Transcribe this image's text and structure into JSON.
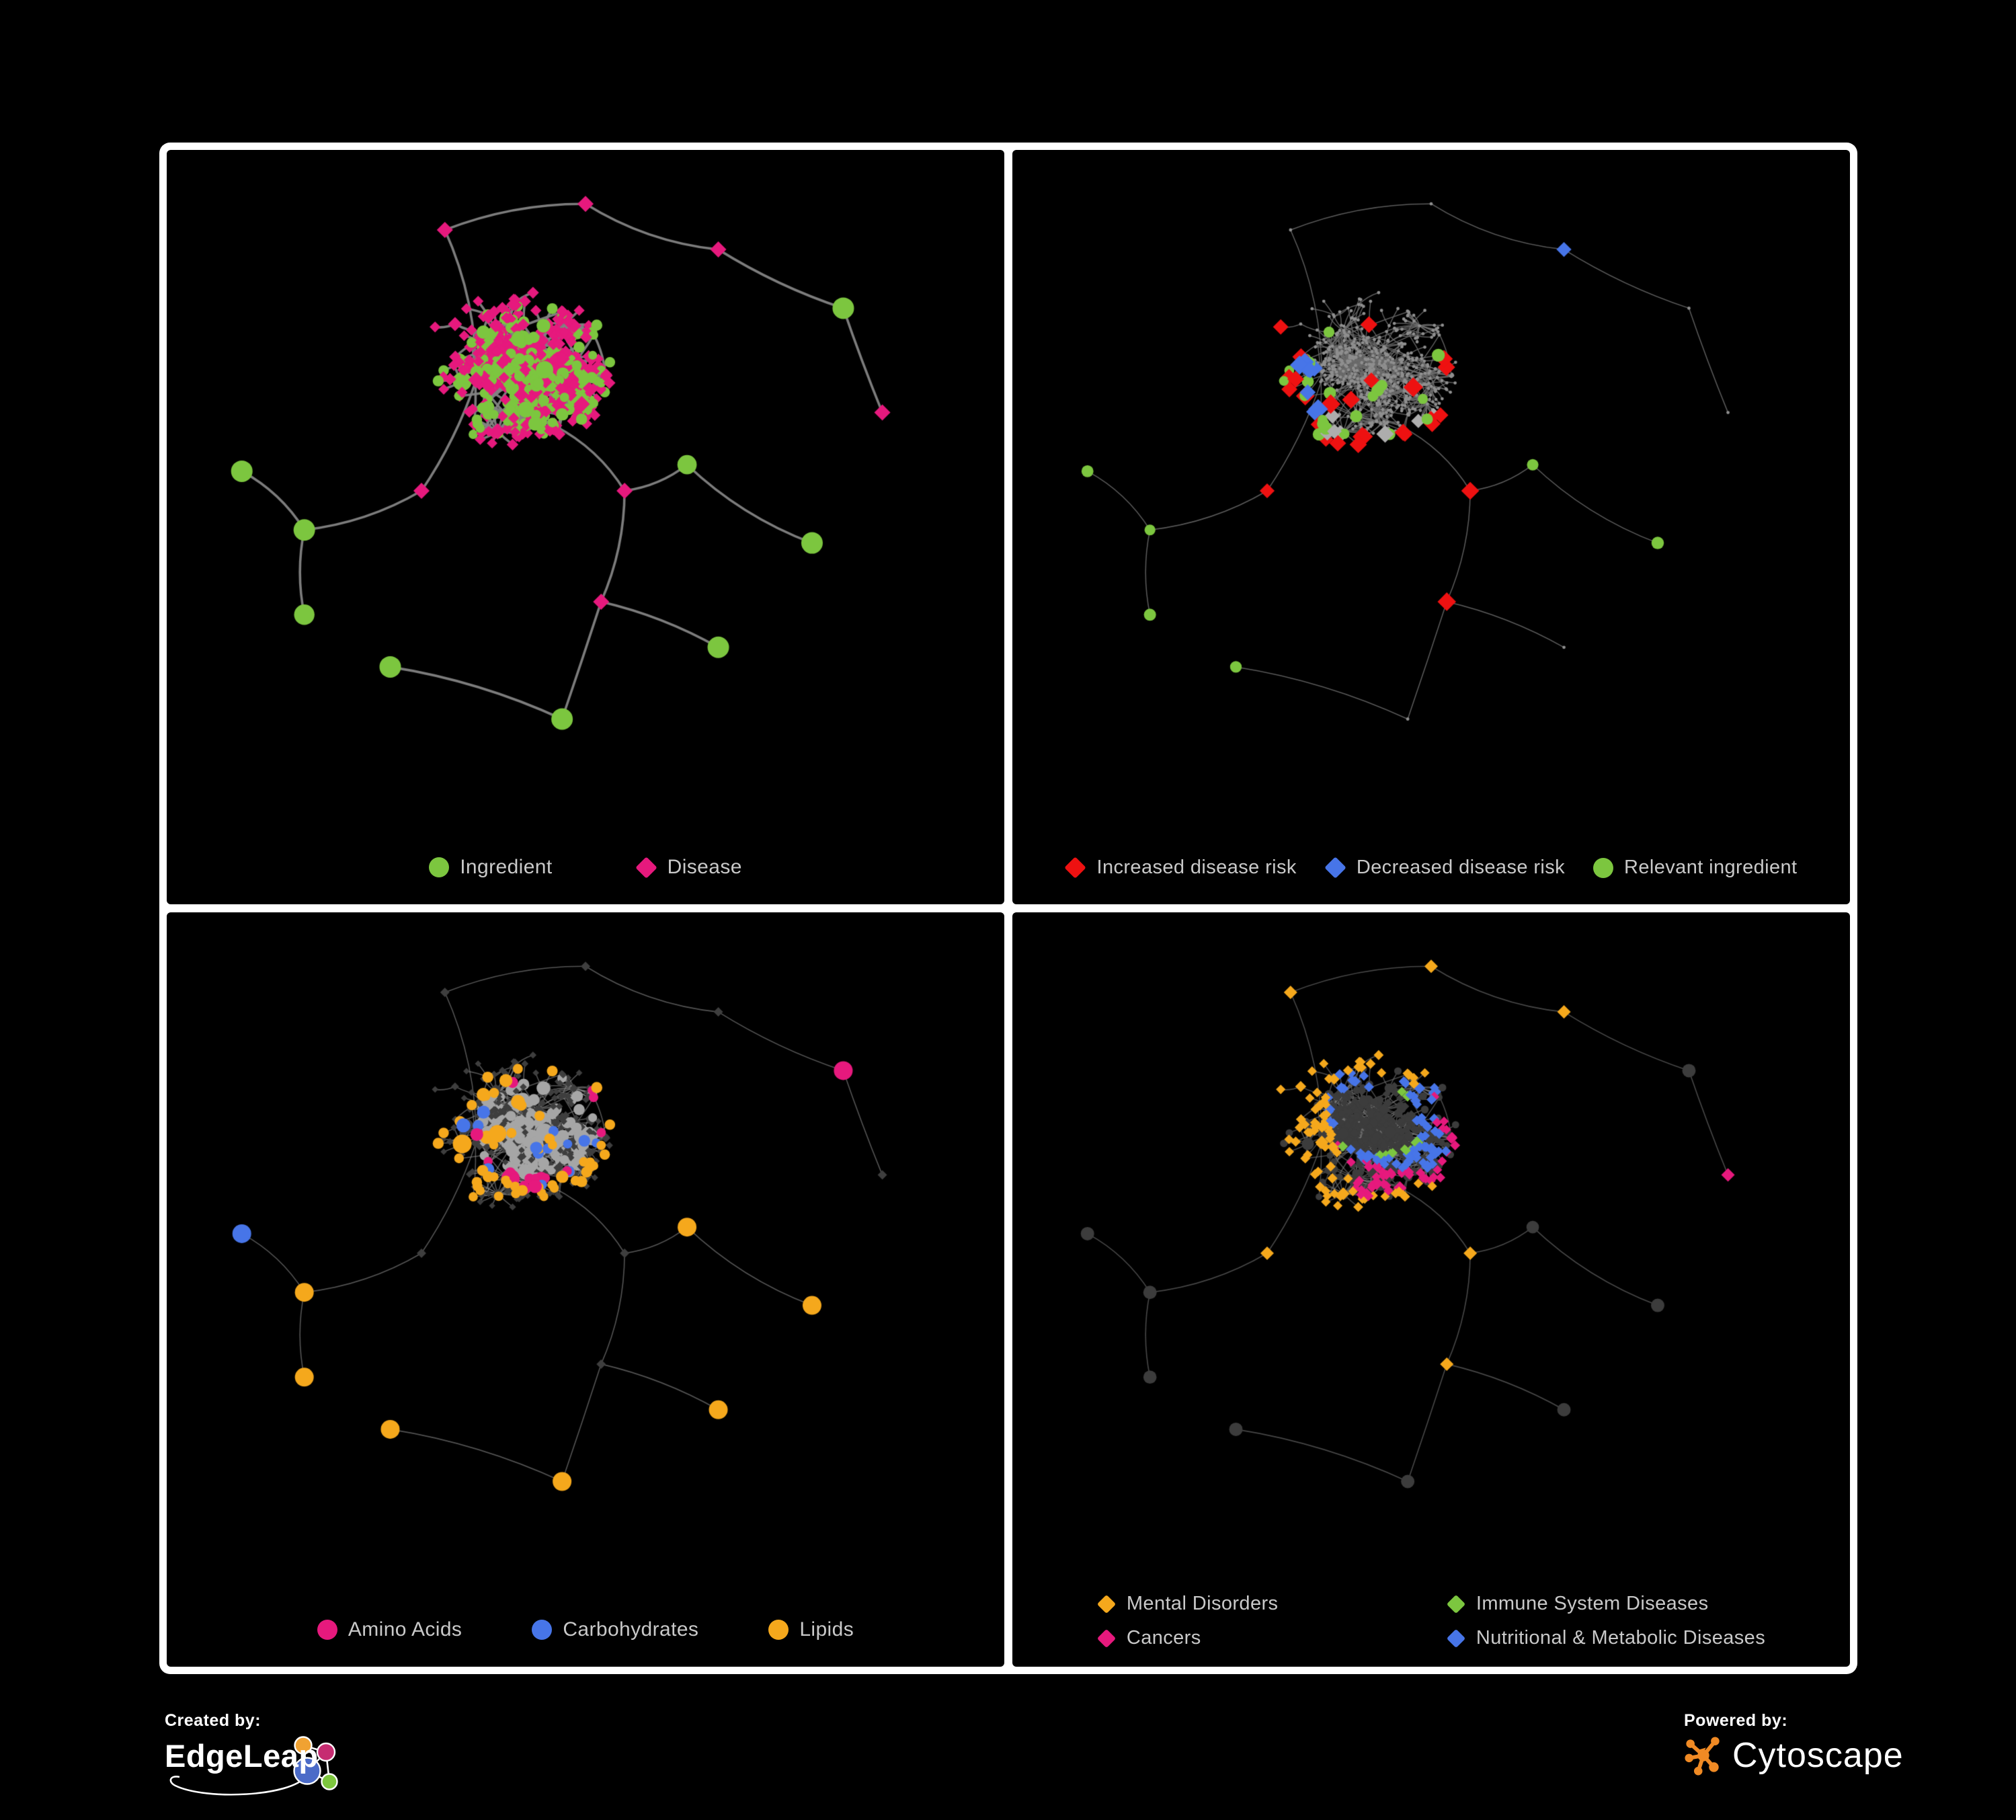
{
  "figure": {
    "background": "#000000",
    "frame_color": "#ffffff"
  },
  "panels": [
    {
      "name": "ingredient-disease-network",
      "legend": [
        {
          "shape": "circle",
          "color": "#7CC63F",
          "label": "Ingredient"
        },
        {
          "shape": "diamond",
          "color": "#E6197D",
          "label": "Disease"
        }
      ],
      "style": {
        "mode": "full",
        "edge": "#838383",
        "edgeWidth": 3.6,
        "edgeAlpha": 0.95,
        "ingredient": "#7CC63F",
        "disease": "#E6197D"
      }
    },
    {
      "name": "disease-risk-network",
      "legend": [
        {
          "shape": "diamond",
          "color": "#EE1111",
          "label": "Increased disease risk"
        },
        {
          "shape": "diamond",
          "color": "#4775E8",
          "label": "Decreased disease risk"
        },
        {
          "shape": "circle",
          "color": "#7CC63F",
          "label": "Relevant ingredient"
        }
      ],
      "style": {
        "mode": "tiny",
        "edge": "#6C6C6C",
        "edgeWidth": 1.5,
        "edgeAlpha": 0.85,
        "base": "#8F8F8F",
        "baseRadius": 2.4
      },
      "highlights": [
        {
          "on": "d",
          "shape": "diamond",
          "color": "#EE1111",
          "size": 13,
          "count": 27,
          "spread": 0.05,
          "foci": [
            [
              0.36,
              0.3
            ],
            [
              0.45,
              0.4
            ],
            [
              0.52,
              0.34
            ],
            [
              0.4,
              0.52
            ],
            [
              0.56,
              0.55
            ],
            [
              0.3,
              0.36
            ],
            [
              0.36,
              0.67
            ],
            [
              0.4,
              0.76
            ]
          ]
        },
        {
          "on": "d",
          "shape": "diamond",
          "color": "#4775E8",
          "size": 13,
          "count": 9,
          "spread": 0.03,
          "foci": [
            [
              0.205,
              0.34
            ],
            [
              0.225,
              0.4
            ],
            [
              0.21,
              0.37
            ],
            [
              0.87,
              0.165
            ]
          ]
        },
        {
          "on": "d",
          "shape": "diamond",
          "color": "#ADADAD",
          "size": 12,
          "count": 8,
          "spread": 0.04,
          "foci": [
            [
              0.24,
              0.33
            ],
            [
              0.33,
              0.42
            ],
            [
              0.44,
              0.47
            ],
            [
              0.47,
              0.56
            ],
            [
              0.6,
              0.6
            ],
            [
              0.16,
              0.52
            ]
          ]
        },
        {
          "on": "i",
          "shape": "circle",
          "color": "#7CC63F",
          "size": 8.5,
          "count": 27,
          "spread": 0.06,
          "foci": [
            [
              0.3,
              0.28
            ],
            [
              0.42,
              0.38
            ],
            [
              0.5,
              0.3
            ],
            [
              0.36,
              0.48
            ],
            [
              0.6,
              0.52
            ],
            [
              0.13,
              0.3
            ],
            [
              0.25,
              0.6
            ],
            [
              0.57,
              0.37
            ]
          ]
        }
      ]
    },
    {
      "name": "compound-class-network",
      "legend": [
        {
          "shape": "circle",
          "color": "#E6197D",
          "label": "Amino Acids"
        },
        {
          "shape": "circle",
          "color": "#4775E8",
          "label": "Carbohydrates"
        },
        {
          "shape": "circle",
          "color": "#F5A81C",
          "label": "Lipids"
        }
      ],
      "style": {
        "mode": "dim",
        "edge": "#8C8C8C",
        "edgeWidth": 1.6,
        "edgeAlpha": 0.6,
        "ingredient": "#A6A6A6",
        "disease": "#3E3E3E"
      },
      "highlights": [
        {
          "on": "i",
          "shape": "circle",
          "color": "#F5A81C",
          "size": 0,
          "count": 62,
          "spread": 0.045,
          "foci": [
            [
              0.4,
              0.3
            ],
            [
              0.45,
              0.27
            ],
            [
              0.35,
              0.4
            ],
            [
              0.3,
              0.45
            ],
            [
              0.52,
              0.45
            ],
            [
              0.42,
              0.55
            ],
            [
              0.25,
              0.35
            ],
            [
              0.55,
              0.3
            ],
            [
              0.45,
              0.7
            ],
            [
              0.6,
              0.63
            ],
            [
              0.2,
              0.6
            ],
            [
              0.35,
              0.18
            ]
          ]
        },
        {
          "on": "i",
          "shape": "circle",
          "color": "#4775E8",
          "size": 0,
          "count": 17,
          "spread": 0.03,
          "foci": [
            [
              0.42,
              0.28
            ],
            [
              0.38,
              0.33
            ],
            [
              0.48,
              0.32
            ],
            [
              0.68,
              0.63
            ],
            [
              0.12,
              0.22
            ],
            [
              0.44,
              0.4
            ]
          ]
        },
        {
          "on": "i",
          "shape": "circle",
          "color": "#E6197D",
          "size": 0,
          "count": 20,
          "spread": 0.04,
          "foci": [
            [
              0.08,
              0.35
            ],
            [
              0.17,
              0.52
            ],
            [
              0.45,
              0.06
            ],
            [
              0.75,
              0.25
            ],
            [
              0.95,
              0.22
            ],
            [
              0.5,
              0.62
            ],
            [
              0.55,
              0.72
            ],
            [
              0.28,
              0.8
            ],
            [
              0.12,
              0.75
            ],
            [
              0.85,
              0.45
            ]
          ]
        }
      ]
    },
    {
      "name": "disease-class-network",
      "legend": [
        {
          "shape": "diamond",
          "color": "#F5A81C",
          "label": "Mental Disorders"
        },
        {
          "shape": "diamond",
          "color": "#7CC63F",
          "label": "Immune System Diseases"
        },
        {
          "shape": "diamond",
          "color": "#E6197D",
          "label": "Cancers"
        },
        {
          "shape": "diamond",
          "color": "#4775E8",
          "label": "Nutritional & Metabolic Diseases"
        }
      ],
      "style": {
        "mode": "dim2",
        "edge": "#787878",
        "edgeWidth": 1.6,
        "edgeAlpha": 0.6,
        "ingredient": "#3C3C3C",
        "disease": "#3C3C3C"
      },
      "highlights": [
        {
          "on": "d",
          "shape": "diamond",
          "color": "#F5A81C",
          "size": 0,
          "count": 88,
          "spread": 0.05,
          "foci": [
            [
              0.155,
              0.3
            ],
            [
              0.19,
              0.26
            ],
            [
              0.13,
              0.36
            ],
            [
              0.22,
              0.34
            ],
            [
              0.17,
              0.42
            ],
            [
              0.1,
              0.28
            ],
            [
              0.45,
              0.08
            ],
            [
              0.32,
              0.57
            ],
            [
              0.6,
              0.78
            ]
          ]
        },
        {
          "on": "d",
          "shape": "diamond",
          "color": "#E6197D",
          "size": 0,
          "count": 52,
          "spread": 0.04,
          "foci": [
            [
              0.44,
              0.47
            ],
            [
              0.48,
              0.52
            ],
            [
              0.4,
              0.52
            ],
            [
              0.52,
              0.44
            ],
            [
              0.46,
              0.58
            ],
            [
              0.36,
              0.46
            ],
            [
              0.93,
              0.3
            ],
            [
              0.3,
              0.75
            ],
            [
              0.55,
              0.3
            ]
          ]
        },
        {
          "on": "d",
          "shape": "diamond",
          "color": "#4775E8",
          "size": 0,
          "count": 80,
          "spread": 0.04,
          "foci": [
            [
              0.63,
              0.55
            ],
            [
              0.67,
              0.58
            ],
            [
              0.6,
              0.62
            ],
            [
              0.77,
              0.3
            ],
            [
              0.8,
              0.25
            ],
            [
              0.72,
              0.35
            ],
            [
              0.86,
              0.13
            ],
            [
              0.6,
              0.1
            ],
            [
              0.4,
              0.12
            ],
            [
              0.33,
              0.65
            ],
            [
              0.5,
              0.88
            ],
            [
              0.23,
              0.87
            ],
            [
              0.12,
              0.2
            ],
            [
              0.7,
              0.75
            ]
          ]
        },
        {
          "on": "d",
          "shape": "diamond",
          "color": "#7CC63F",
          "size": 0,
          "count": 11,
          "spread": 0.02,
          "foci": [
            [
              0.42,
              0.3
            ],
            [
              0.48,
              0.4
            ],
            [
              0.6,
              0.55
            ],
            [
              0.35,
              0.55
            ],
            [
              0.28,
              0.88
            ],
            [
              0.55,
              0.92
            ],
            [
              0.65,
              0.2
            ]
          ]
        }
      ]
    }
  ],
  "network": {
    "seed": 1337,
    "maxNodes": 640,
    "minNodes": 540,
    "maxDepth": 5,
    "crossFrac": 0.08,
    "clusters": [
      [
        0.46,
        0.4,
        1.0,
        1.7
      ],
      [
        0.36,
        0.33,
        0.9,
        1.5
      ],
      [
        0.55,
        0.5,
        0.9,
        1.4
      ],
      [
        0.29,
        0.5,
        0.85,
        1.3
      ],
      [
        0.14,
        0.56,
        0.8,
        1.0
      ],
      [
        0.32,
        0.1,
        0.9,
        1.1
      ],
      [
        0.5,
        0.06,
        0.8,
        1.0
      ],
      [
        0.67,
        0.13,
        0.85,
        1.0
      ],
      [
        0.83,
        0.22,
        0.9,
        1.2
      ],
      [
        0.88,
        0.38,
        0.7,
        0.9
      ],
      [
        0.63,
        0.46,
        0.8,
        1.1
      ],
      [
        0.52,
        0.67,
        0.8,
        1.1
      ],
      [
        0.47,
        0.85,
        0.9,
        1.2
      ],
      [
        0.25,
        0.77,
        0.9,
        1.2
      ],
      [
        0.14,
        0.69,
        0.7,
        0.9
      ],
      [
        0.67,
        0.74,
        0.8,
        1.1
      ],
      [
        0.79,
        0.58,
        0.65,
        0.9
      ],
      [
        0.06,
        0.47,
        0.55,
        0.8
      ]
    ]
  },
  "footer": {
    "created_by": "Created by:",
    "edgeleap": "EdgeLeap",
    "powered_by": "Powered by:",
    "cytoscape": "Cytoscape",
    "edgeleap_colors": {
      "orange": "#F0A232",
      "magenta": "#C62C71",
      "blue": "#4B6BC8",
      "green": "#7DC63E"
    },
    "cytoscape_color": "#F08A24"
  }
}
